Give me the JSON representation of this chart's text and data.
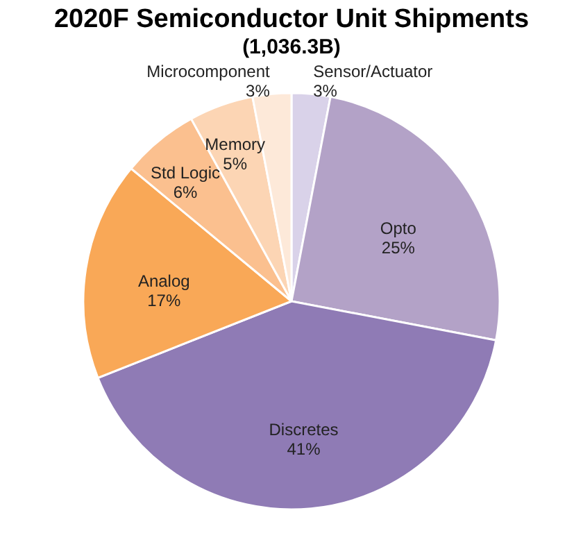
{
  "chart_data": {
    "type": "pie",
    "title": "2020F Semiconductor Unit Shipments",
    "subtitle": "(1,036.3B)",
    "categories": [
      "Sensor/Actuator",
      "Opto",
      "Discretes",
      "Analog",
      "Std Logic",
      "Memory",
      "Microcomponent"
    ],
    "values": [
      3,
      25,
      41,
      17,
      6,
      5,
      3
    ],
    "value_labels": [
      "3%",
      "25%",
      "41%",
      "17%",
      "6%",
      "5%",
      "3%"
    ],
    "colors": [
      "#d9d2e9",
      "#b3a2c7",
      "#8f7bb5",
      "#f9a857",
      "#fbc08f",
      "#fcd5b4",
      "#fde9d9"
    ],
    "legend": false
  }
}
